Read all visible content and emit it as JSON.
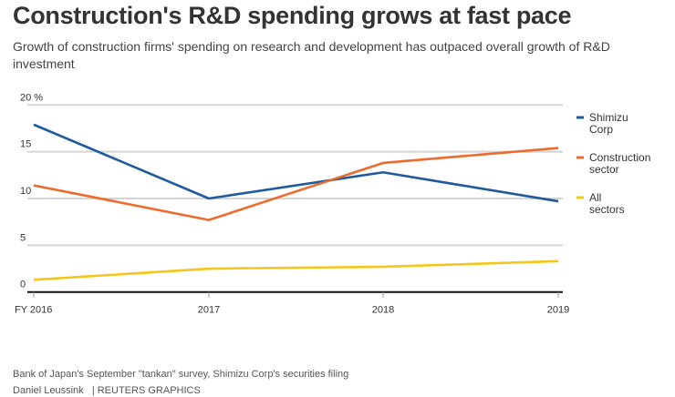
{
  "title": "Construction's R&D spending grows at fast pace",
  "subtitle": "Growth of construction firms' spending on research and development has outpaced overall growth of R&D investment",
  "source": "Bank of Japan's September \"tankan\" survey, Shimizu Corp's securities filing",
  "credit": "Daniel Leussink   | REUTERS GRAPHICS",
  "chart_data": {
    "type": "line",
    "categories": [
      "FY 2016",
      "2017",
      "2018",
      "2019"
    ],
    "y_tick_labels": [
      "0",
      "5",
      "10",
      "15",
      "20 %"
    ],
    "y_ticks": [
      0,
      5,
      10,
      15,
      20
    ],
    "ylim": [
      0,
      20
    ],
    "grid": true,
    "legend": "right",
    "series": [
      {
        "name": "Shimizu Corp",
        "legend_lines": [
          "Shimizu",
          "Corp"
        ],
        "color": "#1f5a9e",
        "values": [
          17.9,
          10.0,
          12.8,
          9.7
        ]
      },
      {
        "name": "Construction sector",
        "legend_lines": [
          "Construction",
          "sector"
        ],
        "color": "#ec6b2d",
        "values": [
          11.4,
          7.7,
          13.8,
          15.4
        ]
      },
      {
        "name": "All sectors",
        "legend_lines": [
          "All",
          "sectors"
        ],
        "color": "#f5c518",
        "values": [
          1.3,
          2.5,
          2.7,
          3.3
        ]
      }
    ]
  }
}
